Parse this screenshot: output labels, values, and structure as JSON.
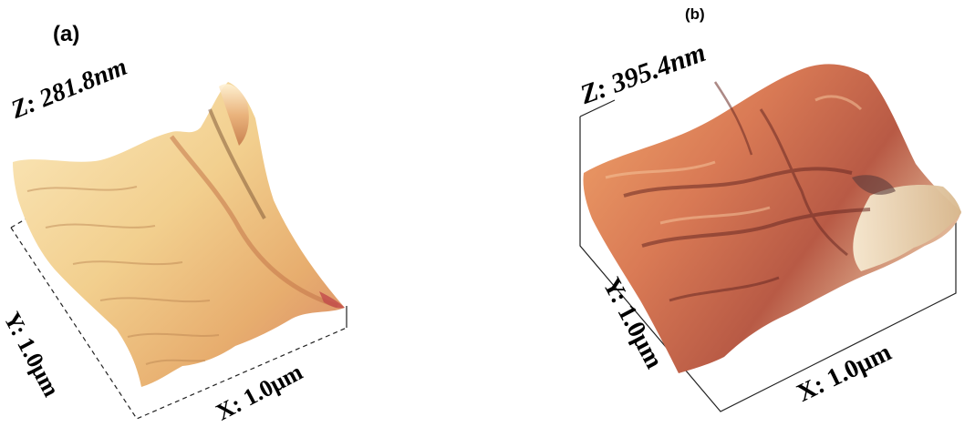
{
  "figure": {
    "panel_a": {
      "label": "(a)",
      "z_label": "Z: 281.8nm",
      "x_label": "X: 1.0μm",
      "y_label": "Y: 1.0μm",
      "colors": {
        "light": "#f6dca0",
        "mid": "#e8a86c",
        "dark": "#b06a3a",
        "shadow": "#5a3a20"
      }
    },
    "panel_b": {
      "label": "(b)",
      "z_label": "Z: 395.4nm",
      "x_label": "X: 1.0μm",
      "y_label": "Y: 1.0μm",
      "colors": {
        "light": "#f4e4c4",
        "mid": "#e08a5a",
        "dark": "#a3483a",
        "shadow": "#5a2a2a"
      }
    }
  }
}
